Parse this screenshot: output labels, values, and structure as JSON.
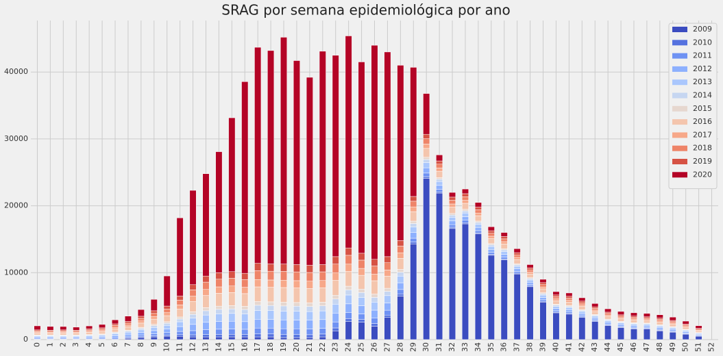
{
  "chart_data": {
    "type": "bar",
    "stacked": true,
    "title": "SRAG por semana epidemiológica por ano",
    "categories": [
      0,
      1,
      2,
      3,
      4,
      5,
      6,
      7,
      8,
      9,
      10,
      11,
      12,
      13,
      14,
      15,
      16,
      17,
      18,
      19,
      20,
      21,
      22,
      23,
      24,
      25,
      26,
      27,
      28,
      29,
      30,
      31,
      32,
      33,
      34,
      35,
      36,
      37,
      38,
      39,
      40,
      41,
      42,
      43,
      44,
      45,
      46,
      47,
      48,
      49,
      50,
      51,
      52
    ],
    "ylim": [
      0,
      47700
    ],
    "yticks": [
      0,
      10000,
      20000,
      30000,
      40000
    ],
    "grid": true,
    "legend": "upper right",
    "series": [
      {
        "name": "2009",
        "color": "#3b4cc0",
        "values": [
          0,
          0,
          0,
          0,
          0,
          0,
          0,
          200,
          300,
          400,
          500,
          500,
          400,
          400,
          400,
          400,
          400,
          400,
          400,
          300,
          300,
          300,
          400,
          1300,
          2700,
          2600,
          2000,
          3300,
          6500,
          14300,
          24100,
          21900,
          16600,
          17300,
          15800,
          12600,
          11900,
          9800,
          7900,
          5600,
          4000,
          3800,
          3300,
          2700,
          2100,
          1800,
          1600,
          1600,
          1300,
          1100,
          800,
          500,
          0
        ]
      },
      {
        "name": "2010",
        "color": "#5572df",
        "values": [
          60,
          60,
          60,
          60,
          60,
          70,
          90,
          100,
          130,
          160,
          180,
          240,
          310,
          360,
          380,
          390,
          380,
          440,
          440,
          440,
          440,
          430,
          430,
          440,
          440,
          410,
          400,
          360,
          330,
          280,
          260,
          190,
          190,
          180,
          160,
          150,
          140,
          130,
          110,
          120,
          110,
          110,
          100,
          90,
          80,
          80,
          80,
          70,
          80,
          70,
          60,
          50,
          0
        ]
      },
      {
        "name": "2011",
        "color": "#6f92f3",
        "values": [
          120,
          110,
          120,
          110,
          130,
          140,
          190,
          200,
          260,
          310,
          360,
          480,
          620,
          730,
          770,
          780,
          760,
          880,
          870,
          880,
          870,
          860,
          860,
          890,
          880,
          820,
          800,
          730,
          660,
          570,
          530,
          380,
          380,
          360,
          320,
          290,
          280,
          260,
          220,
          230,
          210,
          210,
          200,
          180,
          160,
          150,
          150,
          140,
          150,
          140,
          120,
          90,
          0
        ]
      },
      {
        "name": "2012",
        "color": "#8db0fe",
        "values": [
          170,
          170,
          170,
          170,
          190,
          210,
          280,
          300,
          380,
          470,
          540,
          720,
          940,
          1090,
          1150,
          1170,
          1140,
          1320,
          1310,
          1320,
          1310,
          1300,
          1300,
          1330,
          1320,
          1240,
          1200,
          1090,
          1000,
          850,
          790,
          580,
          560,
          540,
          480,
          440,
          420,
          380,
          340,
          350,
          320,
          320,
          290,
          260,
          240,
          230,
          230,
          220,
          230,
          210,
          180,
          140,
          0
        ]
      },
      {
        "name": "2013",
        "color": "#aac7fd",
        "values": [
          170,
          170,
          170,
          170,
          190,
          210,
          280,
          300,
          380,
          470,
          540,
          720,
          940,
          1090,
          1150,
          1170,
          1140,
          1320,
          1310,
          1320,
          1310,
          1300,
          1300,
          1330,
          1320,
          1240,
          1200,
          1090,
          1000,
          850,
          790,
          580,
          560,
          540,
          480,
          440,
          420,
          380,
          340,
          350,
          320,
          320,
          290,
          260,
          240,
          230,
          230,
          220,
          230,
          210,
          180,
          140,
          0
        ]
      },
      {
        "name": "2014",
        "color": "#c6d6f1",
        "values": [
          100,
          100,
          100,
          100,
          110,
          120,
          160,
          180,
          220,
          270,
          320,
          420,
          550,
          640,
          670,
          680,
          670,
          770,
          760,
          770,
          760,
          760,
          760,
          780,
          770,
          720,
          700,
          640,
          580,
          500,
          460,
          340,
          330,
          320,
          280,
          260,
          250,
          220,
          200,
          200,
          190,
          190,
          170,
          150,
          140,
          130,
          130,
          130,
          130,
          120,
          110,
          80,
          0
        ]
      },
      {
        "name": "2015",
        "color": "#e6d7cf",
        "values": [
          70,
          70,
          70,
          70,
          80,
          90,
          120,
          130,
          160,
          200,
          230,
          300,
          390,
          460,
          480,
          490,
          480,
          550,
          550,
          550,
          550,
          540,
          540,
          560,
          550,
          520,
          500,
          460,
          420,
          360,
          330,
          240,
          240,
          230,
          200,
          180,
          180,
          160,
          140,
          150,
          130,
          130,
          120,
          110,
          100,
          95,
          100,
          90,
          100,
          90,
          80,
          60,
          0
        ]
      },
      {
        "name": "2016",
        "color": "#f4c5ad",
        "values": [
          290,
          280,
          290,
          280,
          320,
          350,
          470,
          500,
          640,
          780,
          900,
          1200,
          1560,
          1820,
          1920,
          1950,
          1900,
          2200,
          2180,
          2200,
          2180,
          2160,
          2160,
          2220,
          2200,
          2060,
          2000,
          1820,
          1660,
          1420,
          1320,
          960,
          940,
          900,
          800,
          730,
          700,
          640,
          560,
          580,
          530,
          530,
          490,
          440,
          400,
          380,
          380,
          360,
          380,
          350,
          300,
          230,
          0
        ]
      },
      {
        "name": "2017",
        "color": "#f7a889",
        "values": [
          150,
          140,
          150,
          140,
          160,
          180,
          240,
          250,
          320,
          390,
          450,
          600,
          780,
          910,
          960,
          980,
          950,
          1100,
          1090,
          1100,
          1090,
          1080,
          1080,
          1110,
          1100,
          1030,
          1000,
          910,
          830,
          710,
          660,
          480,
          470,
          450,
          400,
          370,
          350,
          320,
          280,
          290,
          270,
          270,
          250,
          220,
          200,
          190,
          190,
          180,
          190,
          180,
          150,
          120,
          0
        ]
      },
      {
        "name": "2018",
        "color": "#ee8468",
        "values": [
          170,
          170,
          170,
          170,
          190,
          210,
          280,
          300,
          380,
          470,
          540,
          720,
          940,
          1090,
          1150,
          1170,
          1140,
          1320,
          1310,
          1320,
          1310,
          1300,
          1300,
          1330,
          1320,
          1240,
          1200,
          1090,
          1000,
          850,
          790,
          580,
          560,
          540,
          480,
          440,
          420,
          380,
          340,
          350,
          320,
          320,
          290,
          260,
          240,
          230,
          230,
          220,
          230,
          210,
          180,
          140,
          0
        ]
      },
      {
        "name": "2019",
        "color": "#d65244",
        "values": [
          150,
          140,
          150,
          140,
          160,
          180,
          240,
          250,
          320,
          390,
          450,
          600,
          780,
          910,
          960,
          980,
          950,
          1100,
          1090,
          1100,
          1090,
          1080,
          1080,
          1110,
          1100,
          1030,
          1000,
          910,
          830,
          710,
          660,
          480,
          470,
          450,
          400,
          370,
          350,
          320,
          280,
          290,
          270,
          270,
          250,
          220,
          200,
          190,
          190,
          180,
          190,
          180,
          150,
          120,
          0
        ]
      },
      {
        "name": "2020",
        "color": "#b40426",
        "values": [
          600,
          550,
          500,
          450,
          450,
          500,
          600,
          800,
          1000,
          1700,
          4500,
          11700,
          14100,
          15300,
          18100,
          23000,
          28650,
          32300,
          31900,
          33900,
          30500,
          28100,
          31900,
          30100,
          31700,
          28600,
          32000,
          30600,
          26200,
          19300,
          6100,
          900,
          700,
          700,
          700,
          600,
          600,
          600,
          500,
          500,
          500,
          500,
          500,
          500,
          500,
          500,
          500,
          500,
          500,
          500,
          450,
          400,
          0
        ]
      }
    ]
  }
}
